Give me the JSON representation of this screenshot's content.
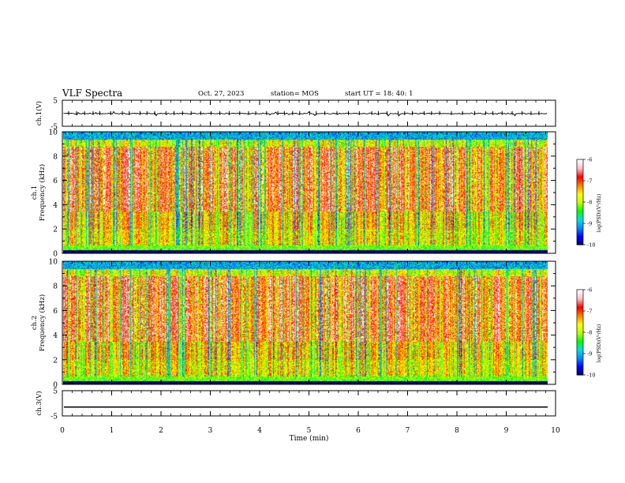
{
  "header": {
    "title": "VLF Spectra",
    "date": "Oct. 27, 2023",
    "station": "station= MOS",
    "start": "start  UT  =   18: 40: 1"
  },
  "chart_data": [
    {
      "type": "line",
      "panel": "ch1-waveform",
      "ylabel": "ch.1(V)",
      "ylim": [
        -5,
        5
      ],
      "yticks": [
        "5",
        "-5"
      ],
      "series": [
        {
          "values": [
            -0.1
          ]
        }
      ],
      "note_color": "#000000"
    },
    {
      "type": "heatmap",
      "panel": "ch1-spectrogram",
      "ylabel": "ch.1\nFrequency (kHz)",
      "ylabel_line1": "ch.1",
      "ylabel_line2": "Frequency (kHz)",
      "ylim": [
        0,
        10
      ],
      "yticks": [
        "0",
        "2",
        "4",
        "6",
        "8",
        "10"
      ],
      "xlim": [
        0,
        10
      ],
      "colorbar": {
        "label": "log(PSD)(V²/Hz)",
        "range": [
          -10,
          -6
        ],
        "ticks": [
          "-6",
          "-7",
          "-8",
          "-9",
          "-10"
        ]
      }
    },
    {
      "type": "heatmap",
      "panel": "ch2-spectrogram",
      "ylabel": "ch.2\nFrequency (kHz)",
      "ylabel_line1": "ch.2",
      "ylabel_line2": "Frequency (kHz)",
      "ylim": [
        0,
        10
      ],
      "yticks": [
        "0",
        "2",
        "4",
        "6",
        "8",
        "10"
      ],
      "xlim": [
        0,
        10
      ],
      "colorbar": {
        "label": "log(PSD)(V²/Hz)",
        "range": [
          -10,
          -6
        ],
        "ticks": [
          "-6",
          "-7",
          "-8",
          "-9",
          "-10"
        ]
      }
    },
    {
      "type": "line",
      "panel": "ch3-waveform",
      "ylabel": "ch.3(V)",
      "ylim": [
        -5,
        5
      ],
      "yticks": [
        "5",
        "-5"
      ],
      "series": [
        {
          "values": [
            -1.5
          ]
        }
      ]
    }
  ],
  "xaxis": {
    "label": "Time (min)",
    "range": [
      0,
      10
    ],
    "ticks": [
      "0",
      "1",
      "2",
      "3",
      "4",
      "5",
      "6",
      "7",
      "8",
      "9",
      "10"
    ]
  },
  "colors": {
    "colormap": [
      "#000060",
      "#0000ff",
      "#0088ff",
      "#00e0e0",
      "#00ff00",
      "#c0ff00",
      "#ffff00",
      "#ff8000",
      "#ff0000",
      "#ffc0c0",
      "#ffffff"
    ]
  }
}
